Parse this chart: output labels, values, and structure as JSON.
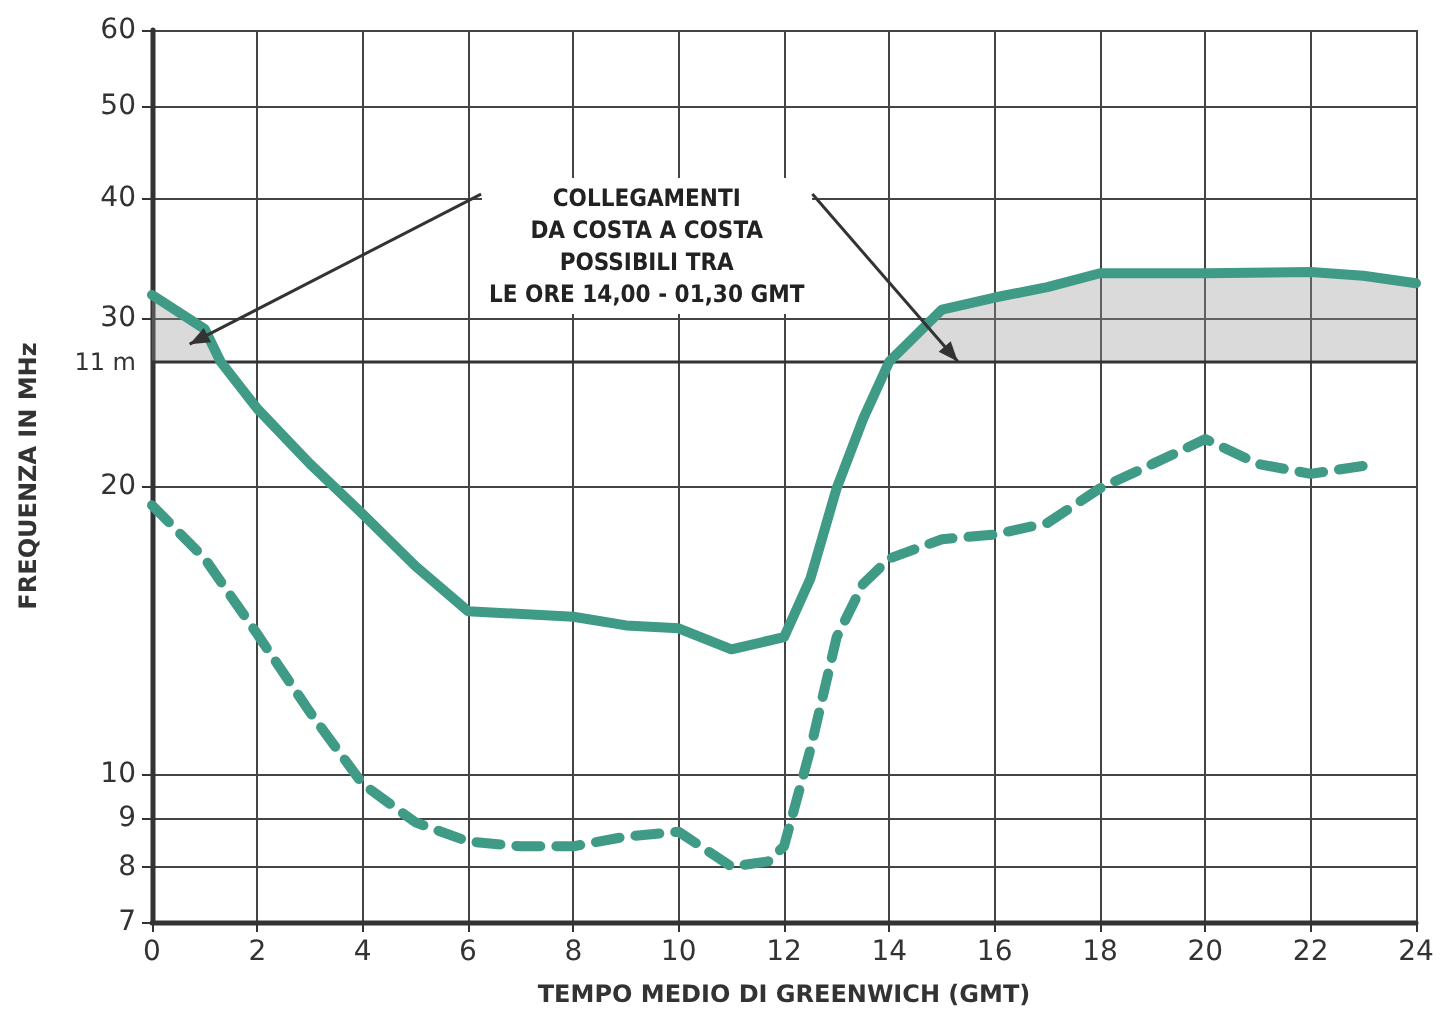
{
  "chart_data": {
    "type": "line",
    "xlabel": "TEMPO MEDIO DI GREENWICH (GMT)",
    "ylabel": "FREQUENZA IN MHz",
    "annotations": [
      "COLLEGAMENTI\nDA COSTA A COSTA\nPOSSIBILI TRA\nLE ORE 14,00 - 01,30 GMT"
    ],
    "log": true,
    "grid": true,
    "marker": "none",
    "xlim": [
      0,
      24
    ],
    "xticks": [
      0,
      2,
      4,
      6,
      8,
      10,
      12,
      14,
      16,
      18,
      20,
      22,
      24
    ],
    "ylim": [
      7,
      60
    ],
    "yticks": [
      7,
      8,
      9,
      10,
      20,
      30,
      40,
      50,
      60
    ],
    "ref_lines": [
      {
        "axis": "y",
        "value": 27,
        "label": "11 m",
        "color": "#333333"
      }
    ],
    "series": [
      {
        "color": "#3f9a86",
        "line_style": "solid",
        "x": [
          0,
          1,
          1.3,
          2,
          3,
          4,
          5,
          6,
          8,
          9,
          10,
          11,
          12,
          12.5,
          13,
          13.5,
          14,
          15,
          16,
          17,
          18,
          20,
          22,
          23,
          24
        ],
        "values": [
          31.7,
          29.2,
          27,
          24.1,
          21.1,
          18.7,
          16.5,
          14.8,
          14.6,
          14.3,
          14.2,
          13.5,
          13.9,
          16.0,
          19.9,
          23.5,
          27,
          30.6,
          31.5,
          32.3,
          33.4,
          33.4,
          33.5,
          33.2,
          32.6
        ],
        "lower": [
          27,
          27,
          27,
          null,
          null,
          null,
          null,
          null,
          null,
          null,
          null,
          null,
          null,
          null,
          null,
          null,
          27,
          27,
          27,
          27,
          27,
          27,
          27,
          27,
          27
        ],
        "upper": [
          31.7,
          29.2,
          27,
          null,
          null,
          null,
          null,
          null,
          null,
          null,
          null,
          null,
          null,
          null,
          null,
          null,
          27,
          30.6,
          31.5,
          32.3,
          33.4,
          33.4,
          33.5,
          33.2,
          32.6
        ]
      },
      {
        "color": "#3f9a86",
        "line_style": "dashed",
        "x": [
          0,
          1,
          2,
          3,
          4,
          5,
          6,
          7,
          8,
          9,
          10,
          11,
          11.7,
          12,
          12.5,
          13,
          13.5,
          14,
          15,
          16,
          17,
          18,
          19,
          20,
          21,
          22,
          23
        ],
        "values": [
          19.1,
          16.8,
          14.0,
          11.6,
          9.76,
          8.9,
          8.5,
          8.4,
          8.4,
          8.6,
          8.7,
          8.0,
          8.1,
          8.4,
          10.6,
          13.9,
          15.8,
          16.8,
          17.6,
          17.8,
          18.3,
          19.9,
          21.1,
          22.4,
          21.1,
          20.6,
          21.0
        ]
      }
    ]
  }
}
